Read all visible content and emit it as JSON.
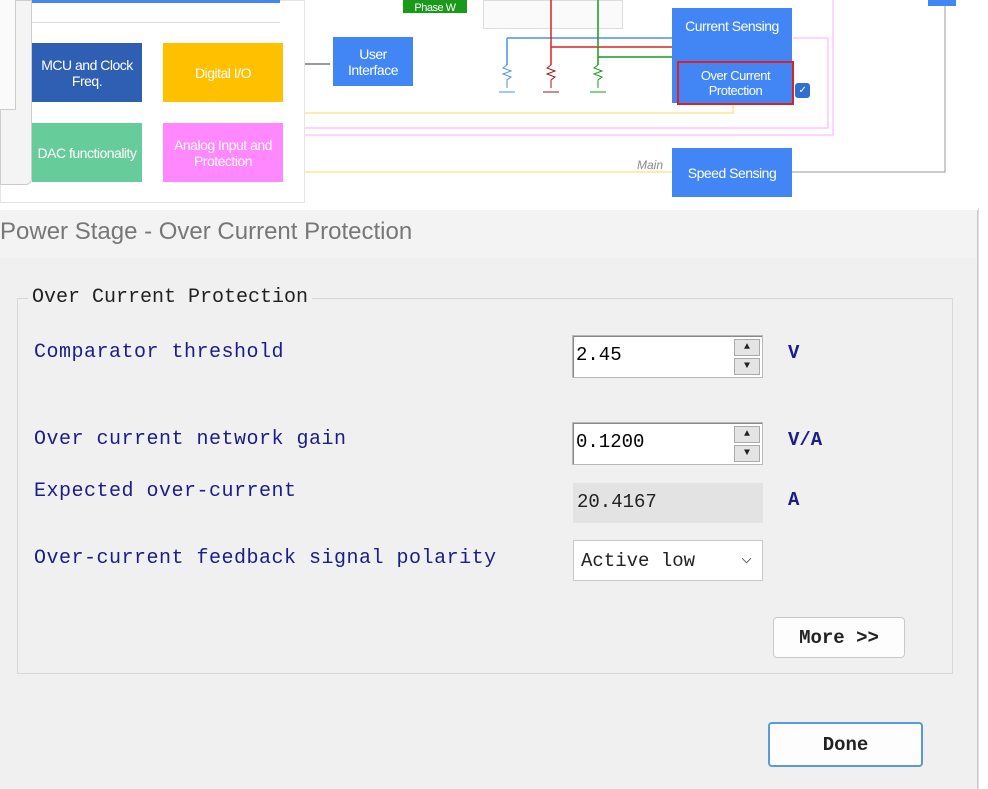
{
  "diagram": {
    "blocks": {
      "mcu": "MCU and Clock Freq.",
      "digital_io": "Digital I/O",
      "dac": "DAC functionality",
      "analog": "Analog Input and Protection",
      "user_interface": "User Interface",
      "current_sensing": "Current Sensing",
      "over_current": "Over Current Protection",
      "speed_sensing": "Speed Sensing",
      "phase_w": "Phase W"
    },
    "main_label": "Main",
    "colors": {
      "blue_block": "#4285f4",
      "mcu": "#2f5fb3",
      "digital_io": "#ffc000",
      "dac": "#66cc99",
      "analog": "#ff88ff",
      "selection": "#e02020"
    }
  },
  "dialog": {
    "title": "Power Stage - Over Current Protection",
    "group_title": "Over Current Protection",
    "fields": [
      {
        "label": "Comparator threshold",
        "value": "2.45",
        "unit": "V"
      },
      {
        "label": "Over current network gain",
        "value": "0.1200",
        "unit": "V/A"
      },
      {
        "label": "Expected over-current",
        "value": "20.4167",
        "unit": "A"
      },
      {
        "label": "Over-current feedback signal polarity",
        "value": "Active low"
      }
    ],
    "more_button": "More >>",
    "done_button": "Done",
    "spin_up": "▲",
    "spin_down": "▼",
    "chevron": "⌵"
  }
}
